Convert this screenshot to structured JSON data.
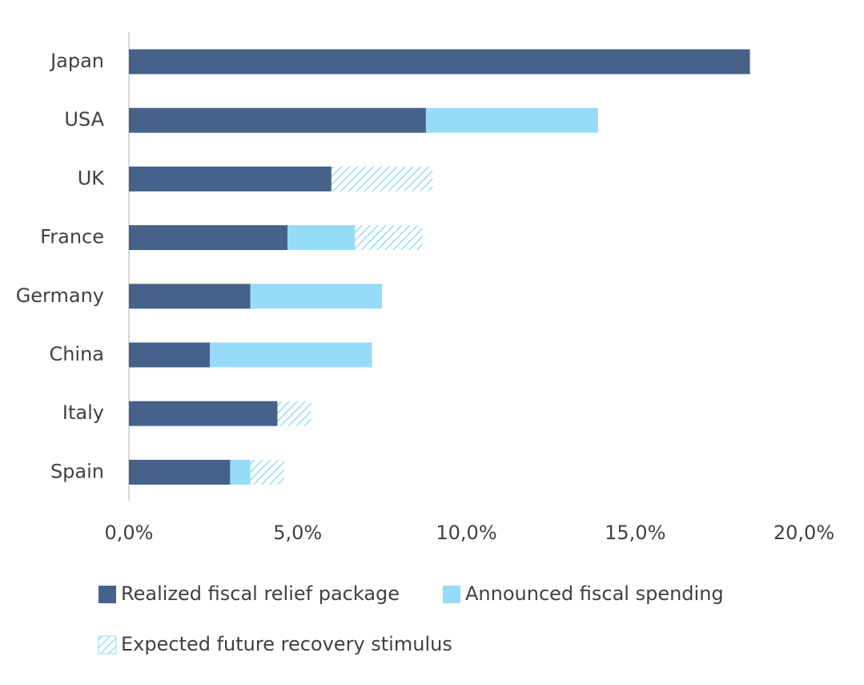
{
  "chart_data": {
    "type": "stacked-barh",
    "categories": [
      "Japan",
      "USA",
      "UK",
      "France",
      "Germany",
      "China",
      "Italy",
      "Spain"
    ],
    "series": [
      {
        "name": "Realized fiscal relief package",
        "color": "#46618a",
        "values": [
          18.4,
          8.8,
          6.0,
          4.7,
          3.6,
          2.4,
          4.4,
          3.0
        ]
      },
      {
        "name": "Announced fiscal spending",
        "color": "#96dcf8",
        "values": [
          0,
          5.1,
          0,
          2.0,
          3.9,
          4.8,
          0,
          0.6
        ]
      },
      {
        "name": "Expected future recovery stimulus",
        "color": "#96dcf8",
        "hatch": true,
        "values": [
          0,
          0,
          3.0,
          2.0,
          0,
          0,
          1.0,
          1.0
        ]
      }
    ],
    "xlim": [
      0,
      20
    ],
    "xticks": [
      {
        "value": 0,
        "label": "0,0%"
      },
      {
        "value": 5,
        "label": "5,0%"
      },
      {
        "value": 10,
        "label": "10,0%"
      },
      {
        "value": 15,
        "label": "15,0%"
      },
      {
        "value": 20,
        "label": "20,0%"
      }
    ],
    "grid": false,
    "legend": "bottom"
  }
}
